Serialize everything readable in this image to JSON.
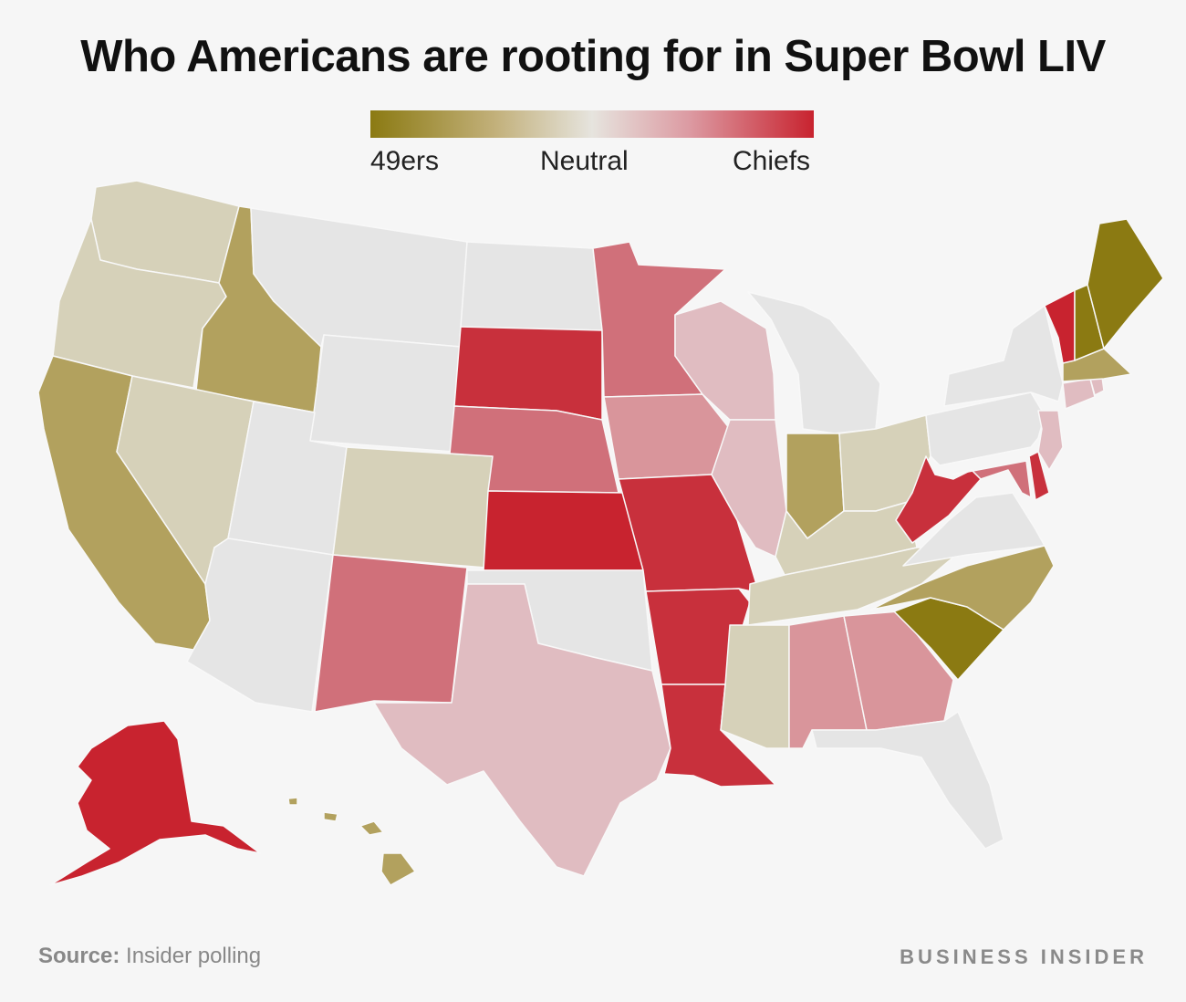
{
  "title": "Who Americans are rooting for in Super Bowl LIV",
  "legend": {
    "left_label": "49ers",
    "middle_label": "Neutral",
    "right_label": "Chiefs",
    "gradient_colors": [
      "#8b7a12",
      "#c2b07a",
      "#e6e4de",
      "#dc9aa2",
      "#c8232f"
    ]
  },
  "colors": {
    "strong_49ers": "#8b7a12",
    "mid_49ers": "#b2a15e",
    "lean_49ers": "#d6d1b9",
    "neutral": "#e5e5e5",
    "lean_chiefs": "#e0bcc1",
    "mid_chiefs": "#d9959b",
    "chiefs": "#d0707a",
    "strong_chiefs": "#c8303c",
    "max_chiefs": "#c8232f",
    "border": "#f8f8f8"
  },
  "source": {
    "label": "Source:",
    "text": "Insider polling"
  },
  "brand": "BUSINESS INSIDER"
}
